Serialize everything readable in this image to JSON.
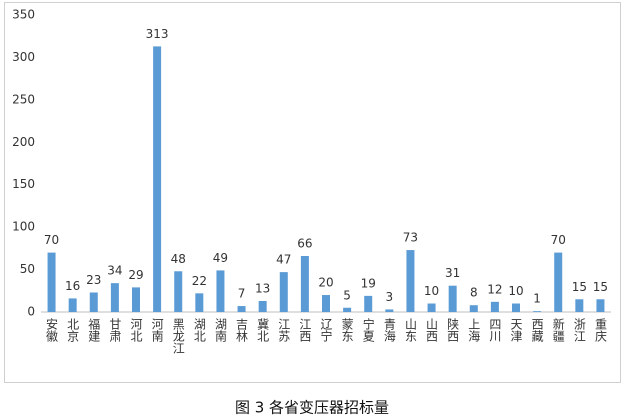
{
  "chart_data": {
    "type": "bar",
    "title": "图 3 各省变压器招标量",
    "categories": [
      "安徽",
      "北京",
      "福建",
      "甘肃",
      "河北",
      "河南",
      "黑龙江",
      "湖北",
      "湖南",
      "吉林",
      "冀北",
      "江苏",
      "江西",
      "辽宁",
      "蒙东",
      "宁夏",
      "青海",
      "山东",
      "山西",
      "陕西",
      "上海",
      "四川",
      "天津",
      "西藏",
      "新疆",
      "浙江",
      "重庆"
    ],
    "values": [
      70,
      16,
      23,
      34,
      29,
      313,
      48,
      22,
      49,
      7,
      13,
      47,
      66,
      20,
      5,
      19,
      3,
      73,
      10,
      31,
      8,
      12,
      10,
      1,
      70,
      15,
      15
    ],
    "color": "#5b9bd5",
    "ylim": [
      0,
      350
    ],
    "yticks": [
      0,
      50,
      100,
      150,
      200,
      250,
      300,
      350
    ],
    "grid": false
  }
}
